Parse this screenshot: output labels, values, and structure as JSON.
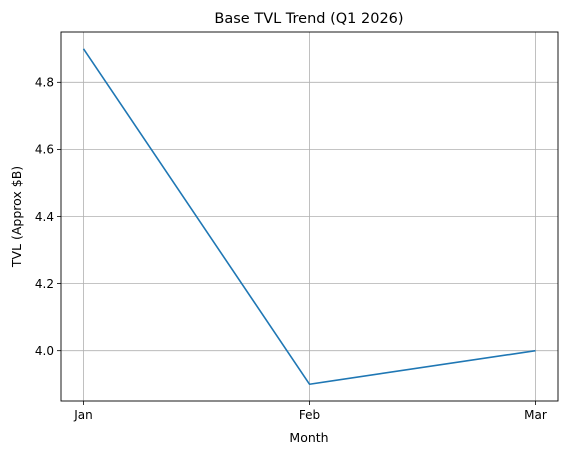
{
  "chart_data": {
    "type": "line",
    "title": "Base TVL Trend (Q1 2026)",
    "xlabel": "Month",
    "ylabel": "TVL (Approx $B)",
    "categories": [
      "Jan",
      "Feb",
      "Mar"
    ],
    "series": [
      {
        "values": [
          4.9,
          3.9,
          4.0
        ],
        "color": "#1f77b4"
      }
    ],
    "ylim": [
      3.85,
      4.95
    ],
    "yticks": [
      "4.0",
      "4.2",
      "4.4",
      "4.6",
      "4.8"
    ],
    "grid": true,
    "legend": "none"
  }
}
